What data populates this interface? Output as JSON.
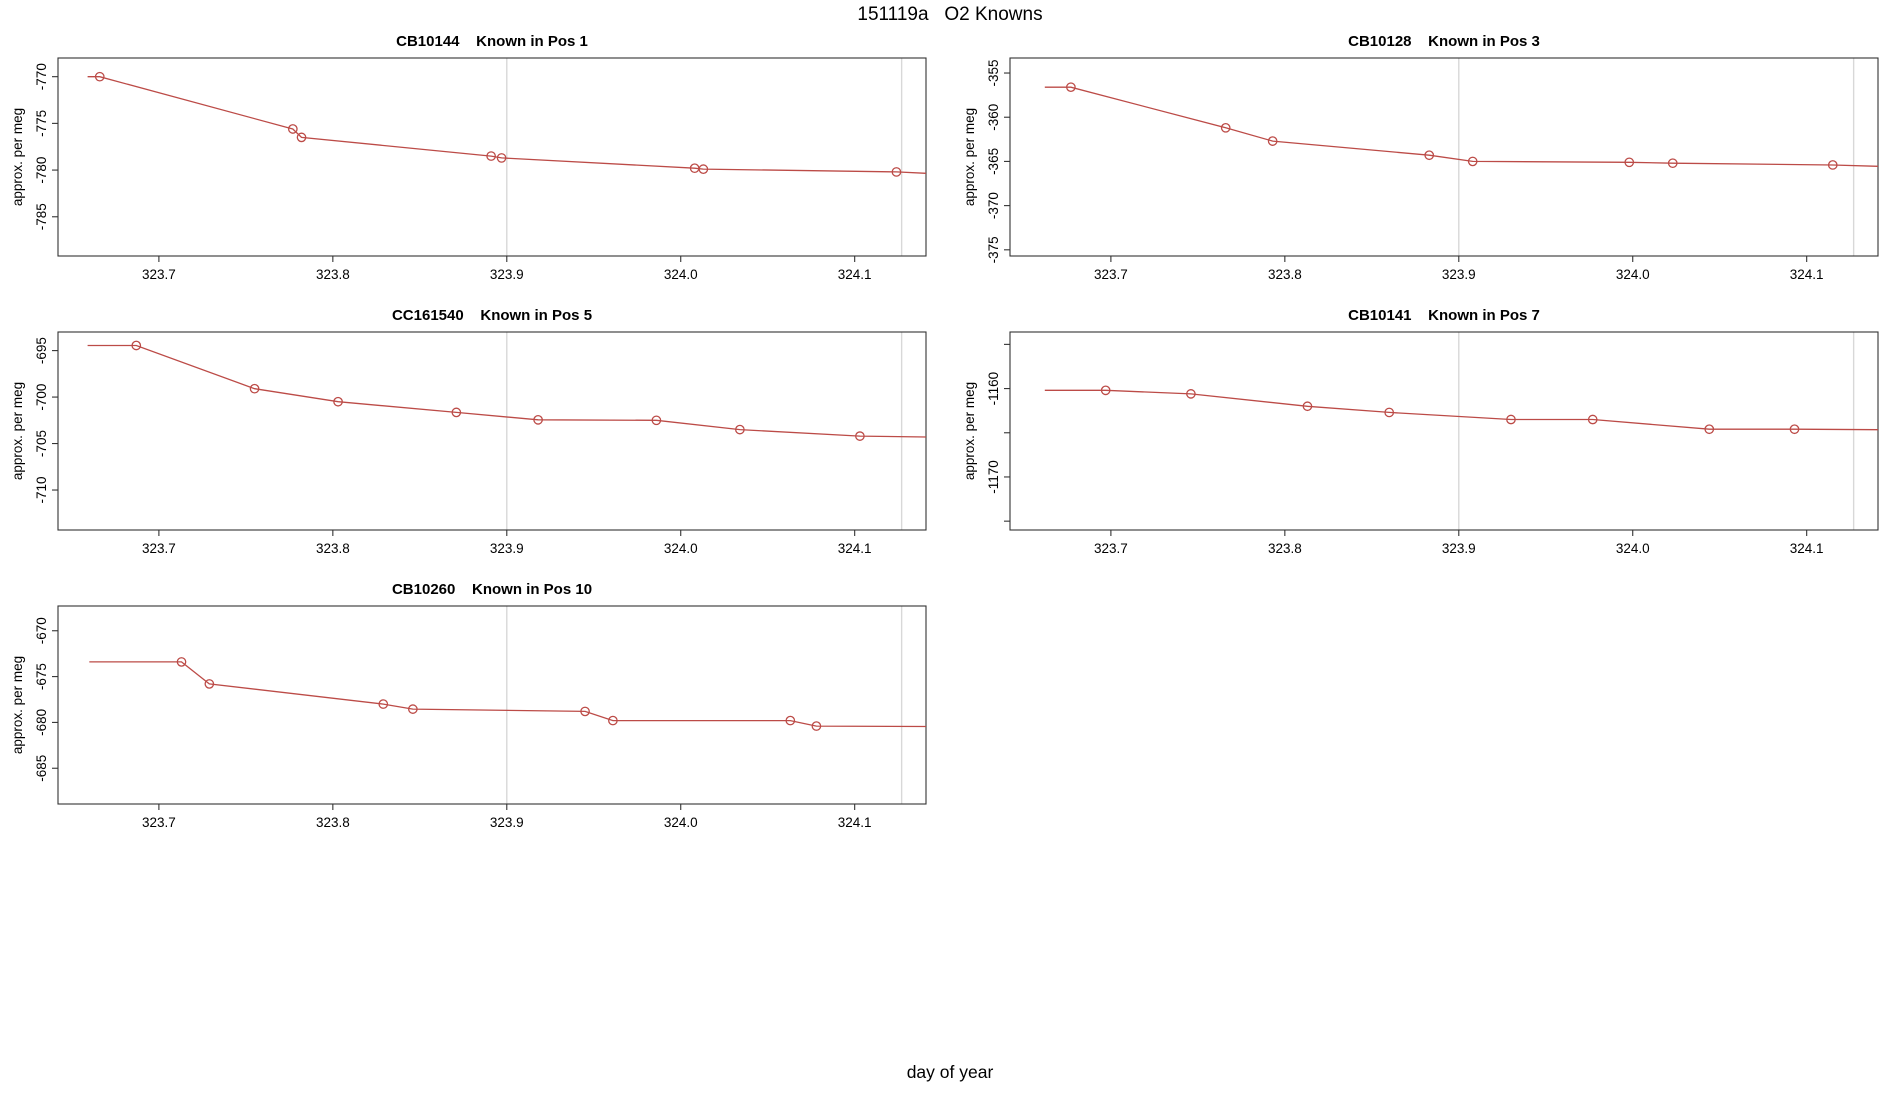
{
  "page_title": "151119a   O2 Knowns",
  "bottom_axis_label": "day of year",
  "colors": {
    "line": "#bc4b47",
    "grid": "#d8d8d8",
    "axis": "#333333",
    "background": "#ffffff"
  },
  "chart_data": [
    {
      "type": "line",
      "title": "CB10144    Known in Pos 1",
      "ylabel": "approx. per meg",
      "xlabel": "day of year",
      "xlim": [
        323.642,
        324.141
      ],
      "ylim": [
        -789.2,
        -768.0
      ],
      "xticks": [
        {
          "v": 323.7,
          "label": "323.7"
        },
        {
          "v": 323.8,
          "label": "323.8"
        },
        {
          "v": 323.9,
          "label": "323.9"
        },
        {
          "v": 324.0,
          "label": "324.0"
        },
        {
          "v": 324.1,
          "label": "324.1"
        }
      ],
      "yticks": [
        {
          "v": -770,
          "label": "-770"
        },
        {
          "v": -775,
          "label": "-775"
        },
        {
          "v": -780,
          "label": "-780"
        },
        {
          "v": -785,
          "label": "-785"
        }
      ],
      "gridlines_x": [
        323.9,
        324.127
      ],
      "grid": "vertical-only",
      "line_lead": [
        323.659,
        -770.0
      ],
      "x": [
        323.666,
        323.777,
        323.782,
        323.891,
        323.897,
        324.008,
        324.013,
        324.124
      ],
      "y": [
        -770.0,
        -775.6,
        -776.5,
        -778.5,
        -778.7,
        -779.8,
        -779.9,
        -780.2
      ],
      "line_tail": [
        324.141,
        -780.35
      ]
    },
    {
      "type": "line",
      "title": "CB10128    Known in Pos 3",
      "ylabel": "approx. per meg",
      "xlabel": "day of year",
      "xlim": [
        323.642,
        324.141
      ],
      "ylim": [
        -375.7,
        -353.3
      ],
      "xticks": [
        {
          "v": 323.7,
          "label": "323.7"
        },
        {
          "v": 323.8,
          "label": "323.8"
        },
        {
          "v": 323.9,
          "label": "323.9"
        },
        {
          "v": 324.0,
          "label": "324.0"
        },
        {
          "v": 324.1,
          "label": "324.1"
        }
      ],
      "yticks": [
        {
          "v": -355,
          "label": "-355"
        },
        {
          "v": -360,
          "label": "-360"
        },
        {
          "v": -365,
          "label": "-365"
        },
        {
          "v": -370,
          "label": "-370"
        },
        {
          "v": -375,
          "label": "-375"
        }
      ],
      "gridlines_x": [
        323.9,
        324.127
      ],
      "grid": "vertical-only",
      "line_lead": [
        323.662,
        -356.6
      ],
      "x": [
        323.677,
        323.766,
        323.793,
        323.883,
        323.908,
        323.998,
        324.023,
        324.115
      ],
      "y": [
        -356.6,
        -361.2,
        -362.7,
        -364.3,
        -365.0,
        -365.1,
        -365.2,
        -365.4
      ],
      "line_tail": [
        324.141,
        -365.55
      ]
    },
    {
      "type": "line",
      "title": "CC161540    Known in Pos 5",
      "ylabel": "approx. per meg",
      "xlabel": "day of year",
      "xlim": [
        323.642,
        324.141
      ],
      "ylim": [
        -714.3,
        -693.0
      ],
      "xticks": [
        {
          "v": 323.7,
          "label": "323.7"
        },
        {
          "v": 323.8,
          "label": "323.8"
        },
        {
          "v": 323.9,
          "label": "323.9"
        },
        {
          "v": 324.0,
          "label": "324.0"
        },
        {
          "v": 324.1,
          "label": "324.1"
        }
      ],
      "yticks": [
        {
          "v": -695,
          "label": "-695"
        },
        {
          "v": -700,
          "label": "-700"
        },
        {
          "v": -705,
          "label": "-705"
        },
        {
          "v": -710,
          "label": "-710"
        }
      ],
      "gridlines_x": [
        323.9,
        324.127
      ],
      "grid": "vertical-only",
      "line_lead": [
        323.659,
        -694.45
      ],
      "x": [
        323.687,
        323.755,
        323.803,
        323.871,
        323.918,
        323.986,
        324.034,
        324.103
      ],
      "y": [
        -694.45,
        -699.1,
        -700.5,
        -701.65,
        -702.45,
        -702.5,
        -703.5,
        -704.2
      ],
      "line_tail": [
        324.141,
        -704.3
      ]
    },
    {
      "type": "line",
      "title": "CB10141    Known in Pos 7",
      "ylabel": "approx. per meg",
      "xlabel": "day of year",
      "xlim": [
        323.642,
        324.141
      ],
      "ylim": [
        -1176.0,
        -1153.6
      ],
      "xticks": [
        {
          "v": 323.7,
          "label": "323.7"
        },
        {
          "v": 323.8,
          "label": "323.8"
        },
        {
          "v": 323.9,
          "label": "323.9"
        },
        {
          "v": 324.0,
          "label": "324.0"
        },
        {
          "v": 324.1,
          "label": "324.1"
        }
      ],
      "yticks": [
        {
          "v": -1155,
          "label": ""
        },
        {
          "v": -1160,
          "label": "-1160"
        },
        {
          "v": -1165,
          "label": ""
        },
        {
          "v": -1170,
          "label": "-1170"
        },
        {
          "v": -1175,
          "label": ""
        }
      ],
      "gridlines_x": [
        323.9,
        324.127
      ],
      "grid": "vertical-only",
      "line_lead": [
        323.662,
        -1160.2
      ],
      "x": [
        323.697,
        323.746,
        323.813,
        323.86,
        323.93,
        323.977,
        324.044,
        324.093
      ],
      "y": [
        -1160.2,
        -1160.6,
        -1162.0,
        -1162.7,
        -1163.5,
        -1163.5,
        -1164.6,
        -1164.6
      ],
      "line_tail": [
        324.141,
        -1164.65
      ]
    },
    {
      "type": "line",
      "title": "CB10260    Known in Pos 10",
      "ylabel": "approx. per meg",
      "xlabel": "day of year",
      "xlim": [
        323.642,
        324.141
      ],
      "ylim": [
        -688.9,
        -667.3
      ],
      "xticks": [
        {
          "v": 323.7,
          "label": "323.7"
        },
        {
          "v": 323.8,
          "label": "323.8"
        },
        {
          "v": 323.9,
          "label": "323.9"
        },
        {
          "v": 324.0,
          "label": "324.0"
        },
        {
          "v": 324.1,
          "label": "324.1"
        }
      ],
      "yticks": [
        {
          "v": -670,
          "label": "-670"
        },
        {
          "v": -675,
          "label": "-675"
        },
        {
          "v": -680,
          "label": "-680"
        },
        {
          "v": -685,
          "label": "-685"
        }
      ],
      "gridlines_x": [
        323.9,
        324.127
      ],
      "grid": "vertical-only",
      "line_lead": [
        323.66,
        -673.4
      ],
      "x": [
        323.713,
        323.729,
        323.829,
        323.846,
        323.945,
        323.961,
        324.063,
        324.078
      ],
      "y": [
        -673.4,
        -675.8,
        -678.0,
        -678.55,
        -678.8,
        -679.8,
        -679.8,
        -680.4
      ],
      "line_tail": [
        324.141,
        -680.45
      ]
    }
  ]
}
